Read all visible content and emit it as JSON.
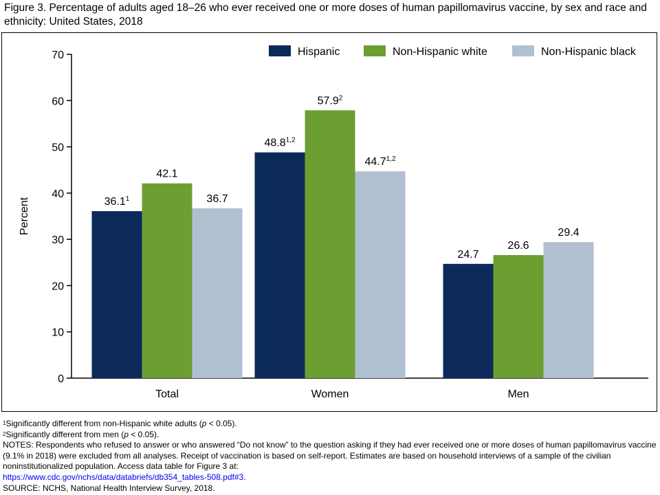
{
  "title": "Figure 3. Percentage of adults aged 18–26 who ever received one or more doses of human papillomavirus vaccine, by sex and race and ethnicity: United States, 2018",
  "colors": {
    "hispanic": "#0b2a5a",
    "nh_white": "#6d9e32",
    "nh_black": "#b1c0d1"
  },
  "chart_data": {
    "type": "bar",
    "categories": [
      "Total",
      "Women",
      "Men"
    ],
    "series": [
      {
        "name": "Hispanic",
        "values": [
          36.1,
          48.8,
          24.7
        ],
        "labels": [
          "36.1",
          "48.8",
          "24.7"
        ],
        "marks": [
          "1",
          "1,2",
          ""
        ]
      },
      {
        "name": "Non-Hispanic white",
        "values": [
          42.1,
          57.9,
          26.6
        ],
        "labels": [
          "42.1",
          "57.9",
          "26.6"
        ],
        "marks": [
          "",
          "2",
          ""
        ]
      },
      {
        "name": "Non-Hispanic black",
        "values": [
          36.7,
          44.7,
          29.4
        ],
        "labels": [
          "36.7",
          "44.7",
          "29.4"
        ],
        "marks": [
          "",
          "1,2",
          ""
        ]
      }
    ],
    "xlabel": "",
    "ylabel": "Percent",
    "ylim": [
      0,
      70
    ],
    "yticks": [
      0,
      10,
      20,
      30,
      40,
      50,
      60,
      70
    ],
    "grid": false,
    "legend": "top-right"
  },
  "notes": {
    "fn1_mark": "1",
    "fn1_text": "Significantly different from non-Hispanic white adults (",
    "fn1_p": "p",
    "fn1_end": " < 0.05).",
    "fn2_mark": "2",
    "fn2_text": "Significantly different from men (",
    "fn2_p": "p",
    "fn2_end": " < 0.05).",
    "notes_text": "NOTES: Respondents who refused to answer or who answered “Do not know” to the question asking if they had ever received one or more doses of human papillomavirus vaccine (9.1% in 2018) were excluded from all analyses. Receipt of vaccination is based on self-report. Estimates are based on household interviews of a sample of the civilian noninstitutionalized population. Access data table for Figure 3 at:",
    "link": "https://www.cdc.gov/nchs/data/databriefs/db354_tables-508.pdf#3",
    "link_end": ".",
    "source": "SOURCE: NCHS, National Health Interview Survey, 2018."
  }
}
